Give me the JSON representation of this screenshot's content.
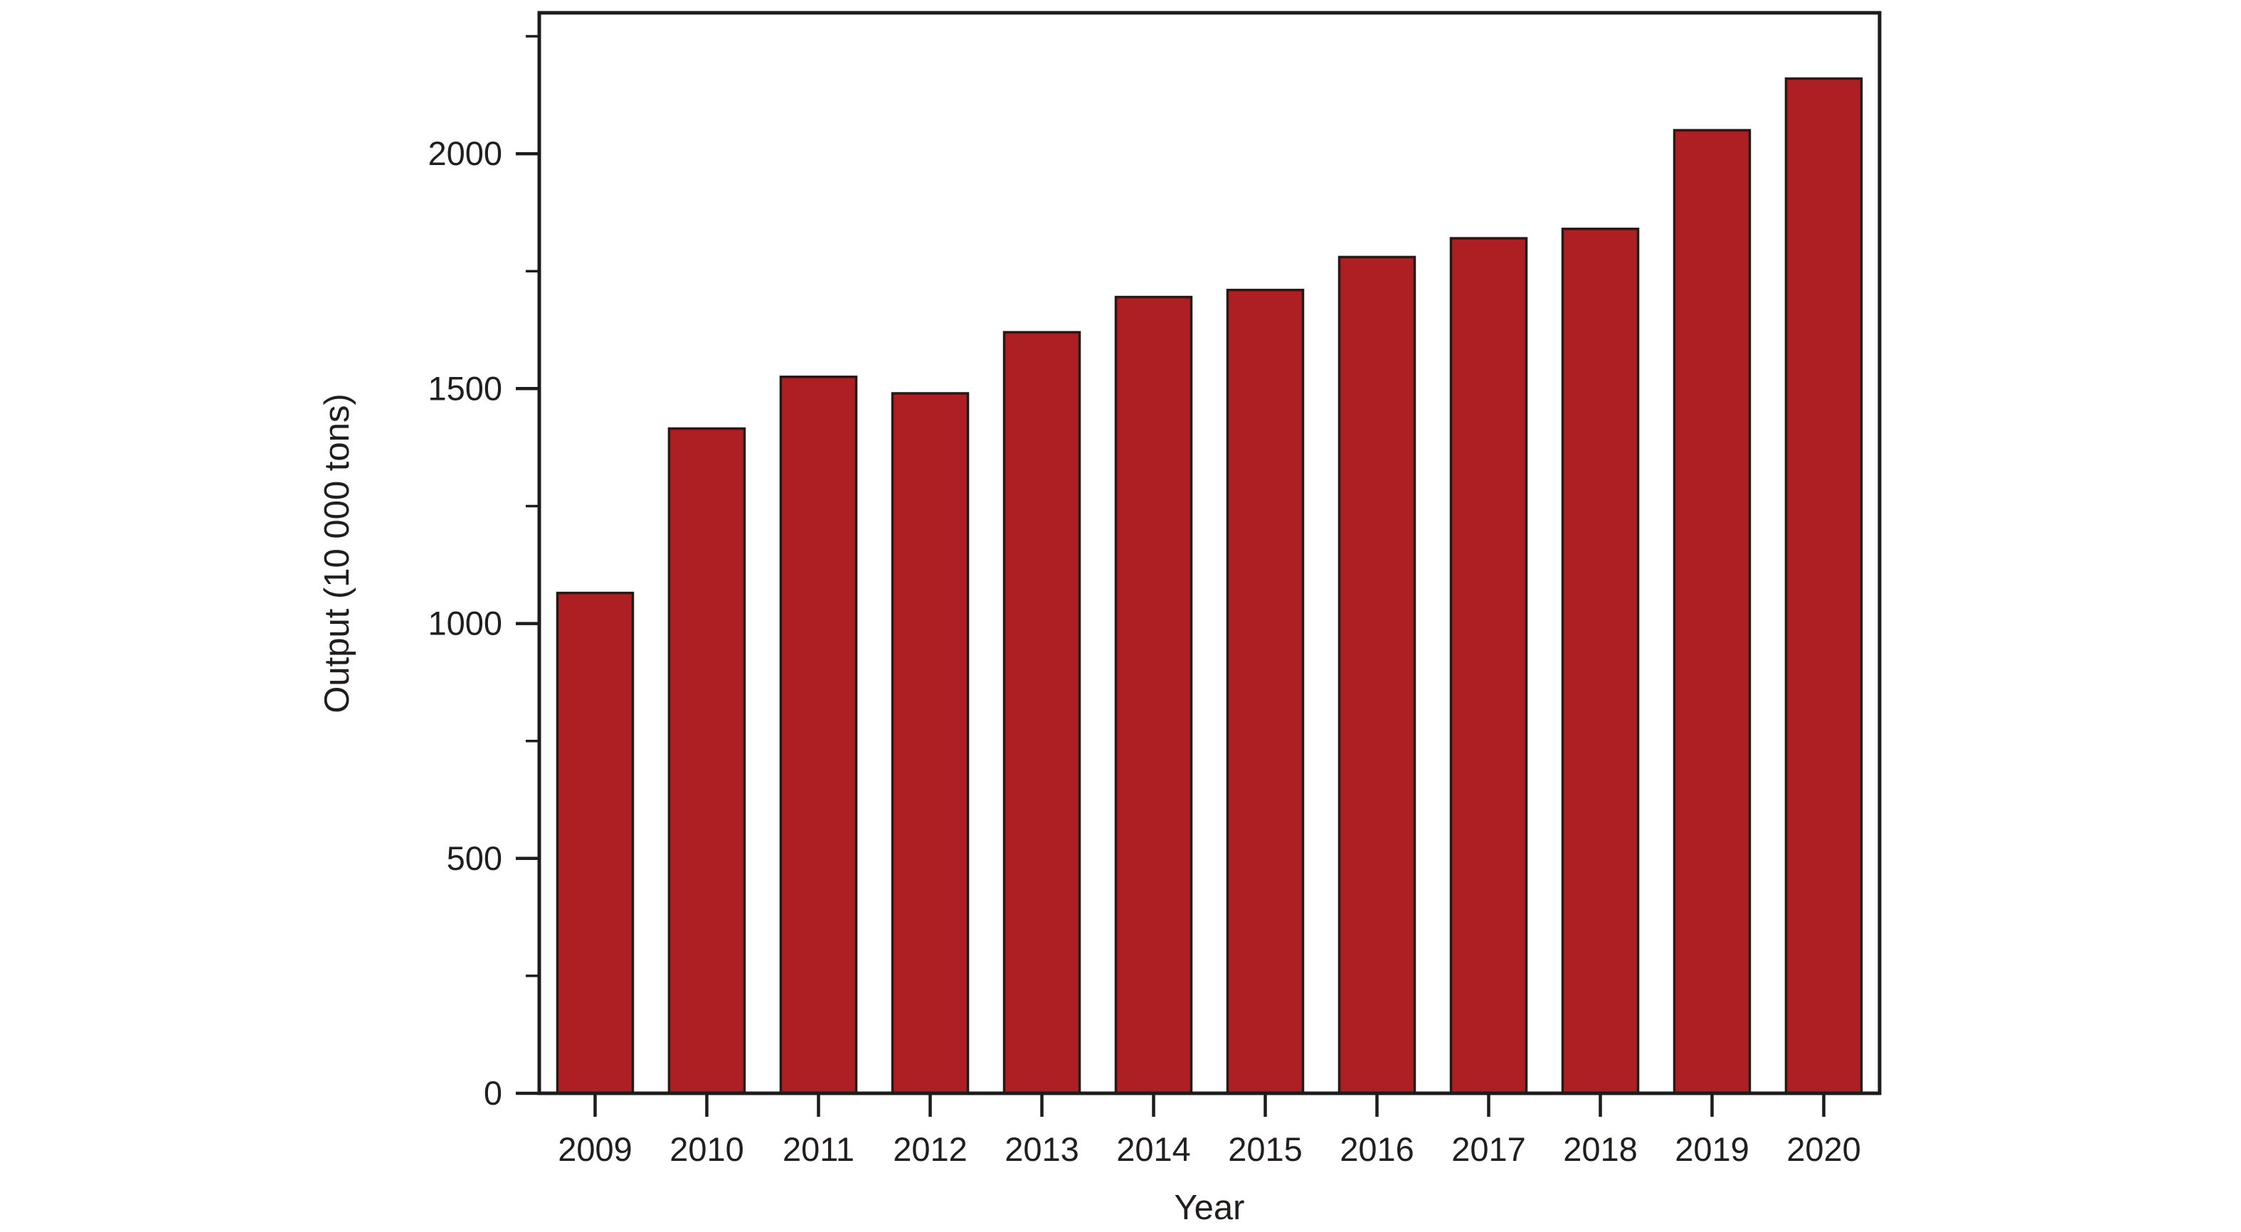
{
  "chart_data": {
    "type": "bar",
    "title": "",
    "xlabel": "Year",
    "ylabel": "Output (10 000 tons)",
    "categories": [
      "2009",
      "2010",
      "2011",
      "2012",
      "2013",
      "2014",
      "2015",
      "2016",
      "2017",
      "2018",
      "2019",
      "2020"
    ],
    "values": [
      1065,
      1415,
      1525,
      1490,
      1620,
      1695,
      1710,
      1780,
      1820,
      1840,
      2050,
      2160
    ],
    "ylim": [
      0,
      2300
    ],
    "y_major_ticks": [
      0,
      500,
      1000,
      1500,
      2000
    ],
    "y_minor_ticks": [
      250,
      750,
      1250,
      1750,
      2250
    ],
    "grid": false,
    "legend": "none",
    "colors": {
      "bar_fill": "#ae1f24",
      "bar_outline": "#241a17",
      "axis": "#1c1c1c",
      "text": "#221e1e",
      "background": "#ffffff"
    }
  }
}
